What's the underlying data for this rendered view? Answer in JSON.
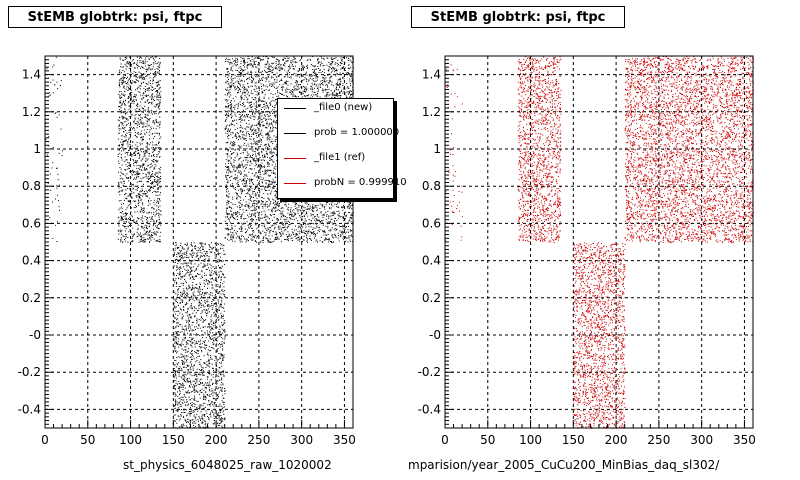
{
  "chart_data": [
    {
      "type": "scatter",
      "title": "StEMB globtrk: psi, ftpc",
      "xlabel": "",
      "ylabel": "",
      "xlim": [
        0,
        360
      ],
      "ylim": [
        -0.5,
        1.5
      ],
      "x_ticks": [
        "0",
        "50",
        "100",
        "150",
        "200",
        "250",
        "300",
        "350"
      ],
      "y_ticks": [
        "-0.4",
        "-0.2",
        "-0",
        "0.2",
        "0.4",
        "0.6",
        "0.8",
        "1",
        "1.2",
        "1.4"
      ],
      "grid": true,
      "marker_color": "#000000",
      "bottom_label": "st_physics_6048025_raw_1020002",
      "legend": {
        "placement": "top-right",
        "entries": [
          {
            "label": "_file0 (new)",
            "color": "#000000"
          },
          {
            "label": "prob = 1.000000",
            "color": "#000000"
          },
          {
            "label": "_file1 (ref)",
            "color": "#cc0000"
          },
          {
            "label": "probN = 0.999910",
            "color": "#cc0000"
          }
        ]
      },
      "regions": [
        {
          "x": [
            0,
            20
          ],
          "y": [
            0.5,
            1.5
          ],
          "density": "low"
        },
        {
          "x": [
            85,
            135
          ],
          "y": [
            0.5,
            1.5
          ],
          "density": "high"
        },
        {
          "x": [
            150,
            210
          ],
          "y": [
            -0.5,
            0.5
          ],
          "density": "high"
        },
        {
          "x": [
            210,
            360
          ],
          "y": [
            0.5,
            1.5
          ],
          "density": "high"
        }
      ]
    },
    {
      "type": "scatter",
      "title": "StEMB globtrk: psi, ftpc",
      "xlabel": "",
      "ylabel": "",
      "xlim": [
        0,
        360
      ],
      "ylim": [
        -0.5,
        1.5
      ],
      "x_ticks": [
        "0",
        "50",
        "100",
        "150",
        "200",
        "250",
        "300",
        "350"
      ],
      "y_ticks": [
        "-0.4",
        "-0.2",
        "-0",
        "0.2",
        "0.4",
        "0.6",
        "0.8",
        "1",
        "1.2",
        "1.4"
      ],
      "grid": true,
      "marker_color": "#cc0000",
      "bottom_label": "mparision/year_2005_CuCu200_MinBias_daq_sl302/",
      "regions": [
        {
          "x": [
            0,
            20
          ],
          "y": [
            0.5,
            1.5
          ],
          "density": "low"
        },
        {
          "x": [
            85,
            135
          ],
          "y": [
            0.5,
            1.5
          ],
          "density": "high"
        },
        {
          "x": [
            150,
            210
          ],
          "y": [
            -0.5,
            0.5
          ],
          "density": "high"
        },
        {
          "x": [
            210,
            360
          ],
          "y": [
            0.5,
            1.5
          ],
          "density": "high"
        }
      ]
    }
  ]
}
